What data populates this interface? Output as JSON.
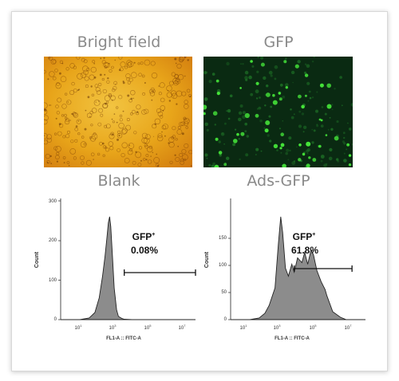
{
  "panels": {
    "bright_field": {
      "title": "Bright field",
      "colors": [
        "#e8a51a",
        "#d17a0e",
        "#f2c441"
      ]
    },
    "gfp": {
      "title": "GFP",
      "colors": [
        "#0a2a12",
        "#46e83a",
        "#1d6e25"
      ]
    },
    "blank": {
      "title": "Blank",
      "gate_label": "GFP",
      "gate_sup": "+",
      "percent": "0.08%",
      "xlabel": "FL1-A :: FITC-A",
      "ylabel": "Count",
      "yticks": [
        "0",
        "100",
        "200",
        "300"
      ],
      "xticks": [
        {
          "base": "10",
          "exp": "1"
        },
        {
          "base": "10",
          "exp": "3"
        },
        {
          "base": "10",
          "exp": "5"
        },
        {
          "base": "10",
          "exp": "7"
        }
      ]
    },
    "ads_gfp": {
      "title": "Ads-GFP",
      "gate_label": "GFP",
      "gate_sup": "+",
      "percent": "61.8%",
      "xlabel": "FL1-A :: FITC-A",
      "ylabel": "Count",
      "yticks": [
        "0",
        "50",
        "100",
        "150"
      ],
      "xticks": [
        {
          "base": "10",
          "exp": "1"
        },
        {
          "base": "10",
          "exp": "3"
        },
        {
          "base": "10",
          "exp": "5"
        },
        {
          "base": "10",
          "exp": "7"
        }
      ]
    }
  },
  "chart_data": [
    {
      "type": "area",
      "title": "Blank",
      "xlabel": "FL1-A :: FITC-A",
      "ylabel": "Count",
      "xscale": "log",
      "xlim": [
        1,
        10000000
      ],
      "ylim": [
        0,
        300
      ],
      "x": [
        1,
        10,
        30,
        60,
        100,
        150,
        200,
        250,
        300,
        350,
        400,
        500,
        600,
        800,
        1000,
        1500,
        2000,
        5000,
        20000,
        10000000
      ],
      "y": [
        0,
        0,
        4,
        18,
        55,
        110,
        160,
        205,
        245,
        260,
        235,
        150,
        80,
        25,
        8,
        3,
        1,
        0,
        0,
        0
      ],
      "gate_range": [
        2000,
        10000000
      ],
      "annotation": "GFP+ 0.08%",
      "fill": "#8c8c8c"
    },
    {
      "type": "area",
      "title": "Ads-GFP",
      "xlabel": "FL1-A :: FITC-A",
      "ylabel": "Count",
      "xscale": "log",
      "xlim": [
        1,
        10000000
      ],
      "ylim": [
        0,
        150
      ],
      "x": [
        1,
        10,
        30,
        60,
        100,
        200,
        300,
        400,
        500,
        700,
        1000,
        1500,
        2000,
        3000,
        5000,
        7000,
        10000,
        15000,
        20000,
        30000,
        50000,
        80000,
        100000,
        200000,
        500000,
        1000000,
        10000000
      ],
      "y": [
        0,
        0,
        2,
        8,
        18,
        40,
        95,
        130,
        110,
        65,
        55,
        70,
        60,
        78,
        72,
        85,
        70,
        88,
        82,
        62,
        48,
        38,
        30,
        10,
        3,
        0,
        0
      ],
      "gate_range": [
        2000,
        2000000
      ],
      "annotation": "GFP+ 61.8%",
      "fill": "#8c8c8c"
    }
  ]
}
